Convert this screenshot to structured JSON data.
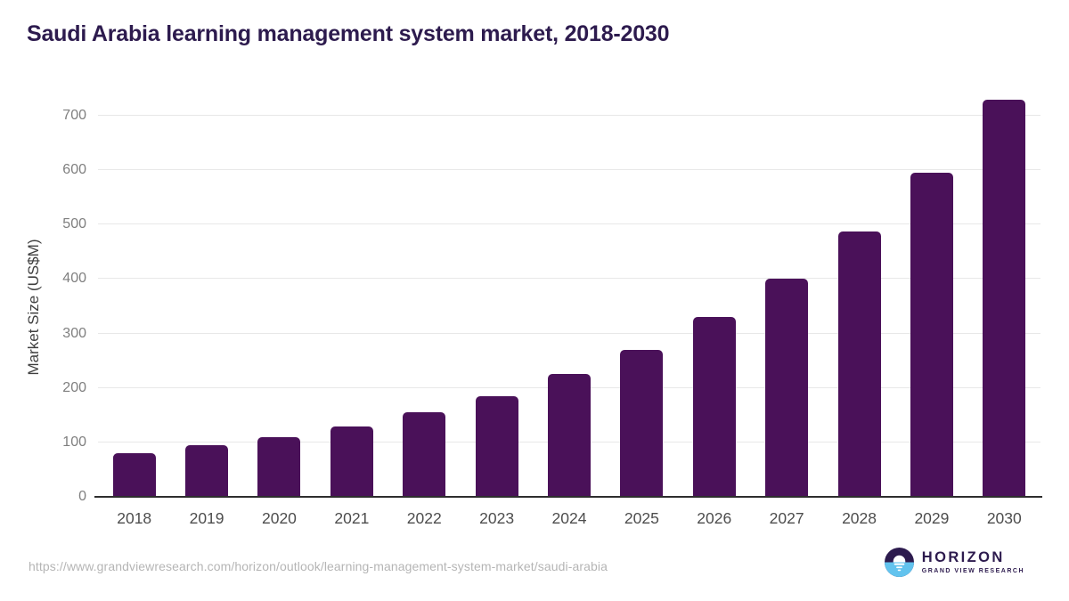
{
  "title": "Saudi Arabia learning management system market, 2018-2030",
  "chart_data": {
    "type": "bar",
    "title": "Saudi Arabia learning management system market, 2018-2030",
    "categories": [
      "2018",
      "2019",
      "2020",
      "2021",
      "2022",
      "2023",
      "2024",
      "2025",
      "2026",
      "2027",
      "2028",
      "2029",
      "2030"
    ],
    "values": [
      80,
      95,
      110,
      130,
      155,
      185,
      225,
      270,
      330,
      400,
      487,
      596,
      729
    ],
    "xlabel": "",
    "ylabel": "Market Size (US$M)",
    "yticks": [
      0,
      100,
      200,
      300,
      400,
      500,
      600,
      700
    ],
    "ylim": [
      0,
      760
    ],
    "grid": "horizontal-only",
    "legend": "none"
  },
  "footer": {
    "source_url": "https://www.grandviewresearch.com/horizon/outlook/learning-management-system-market/saudi-arabia",
    "logo": {
      "title": "HORIZON",
      "subtitle": "GRAND VIEW RESEARCH"
    }
  },
  "colors": {
    "bar": "#4a1159",
    "title_text": "#2d1b4e",
    "grid_line": "#e8e8e8",
    "axis_line": "#2e2e2e",
    "y_tick_label": "#7f7f7f",
    "x_tick_label": "#4d4d4d",
    "url_text": "#b5b5b5",
    "logo_purple": "#2d1b4e",
    "logo_blue": "#62c3ee"
  }
}
